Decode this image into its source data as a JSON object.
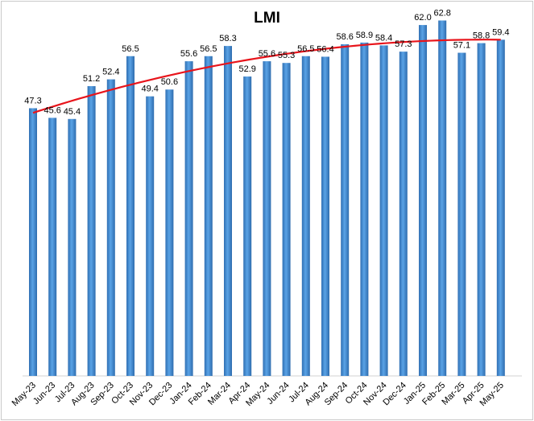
{
  "chart_data": {
    "type": "bar",
    "title": "LMI",
    "xlabel": "",
    "ylabel": "",
    "categories": [
      "May-23",
      "Jun-23",
      "Jul-23",
      "Aug-23",
      "Sep-23",
      "Oct-23",
      "Nov-23",
      "Dec-23",
      "Jan-24",
      "Feb-24",
      "Mar-24",
      "Apr-24",
      "May-24",
      "Jun-24",
      "Jul-24",
      "Aug-24",
      "Sep-24",
      "Oct-24",
      "Nov-24",
      "Dec-24",
      "Jan-25",
      "Feb-25",
      "Mar-25",
      "Apr-25",
      "May-25"
    ],
    "values": [
      47.3,
      45.6,
      45.4,
      51.2,
      52.4,
      56.5,
      49.4,
      50.6,
      55.6,
      56.5,
      58.3,
      52.9,
      55.6,
      55.3,
      56.5,
      56.4,
      58.6,
      58.9,
      58.4,
      57.3,
      62.0,
      62.8,
      57.1,
      58.8,
      59.4
    ],
    "value_labels": [
      "47.3",
      "45.6",
      "45.4",
      "51.2",
      "52.4",
      "56.5",
      "49.4",
      "50.6",
      "55.6",
      "56.5",
      "58.3",
      "52.9",
      "55.6",
      "55.3",
      "56.5",
      "56.4",
      "58.6",
      "58.9",
      "58.4",
      "57.3",
      "62.0",
      "62.8",
      "57.1",
      "58.8",
      "59.4"
    ],
    "trendline": {
      "type": "polynomial",
      "color": "#e8141b"
    },
    "ylim": [
      0,
      65
    ],
    "grid": false,
    "legend": "none",
    "bar_color": "#3d8ad6"
  }
}
